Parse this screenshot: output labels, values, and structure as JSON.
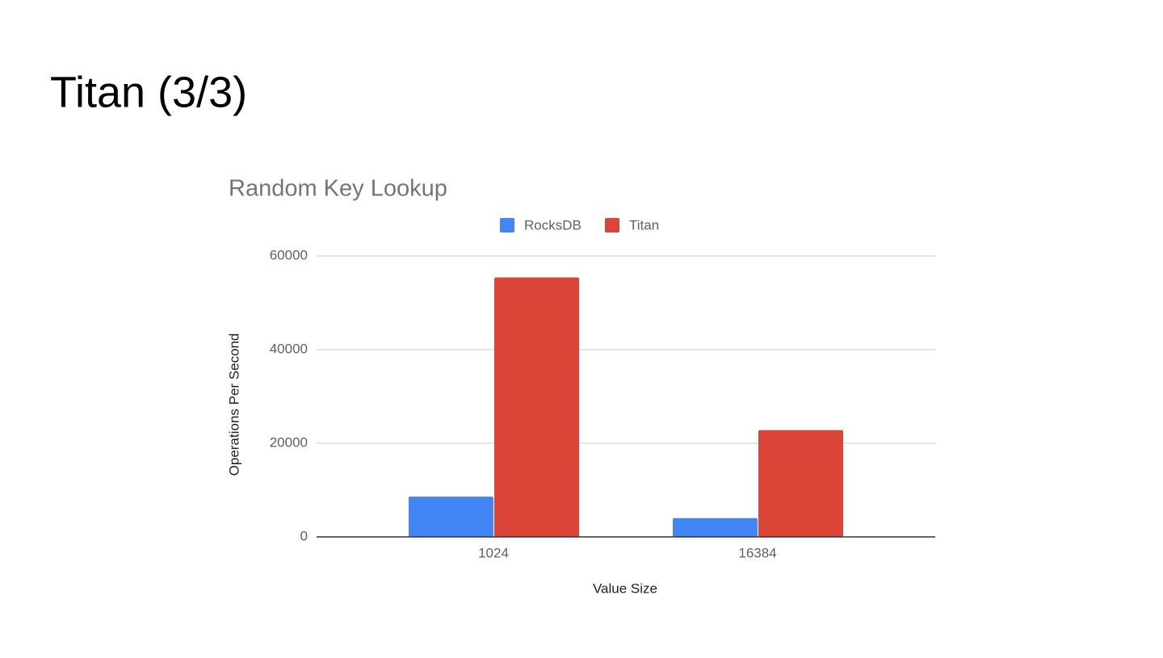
{
  "slide_title": "Titan (3/3)",
  "chart_data": {
    "type": "bar",
    "title": "Random Key Lookup",
    "x_label": "Value Size",
    "y_label": "Operations Per Second",
    "categories": [
      "1024",
      "16384"
    ],
    "series": [
      {
        "name": "RocksDB",
        "color": "#4285f4",
        "values": [
          8600,
          4000
        ]
      },
      {
        "name": "Titan",
        "color": "#db4437",
        "values": [
          55400,
          22800
        ]
      }
    ],
    "ylim": [
      0,
      60000
    ],
    "yticks": [
      0,
      20000,
      40000,
      60000
    ],
    "grid": true,
    "legend": "top"
  }
}
